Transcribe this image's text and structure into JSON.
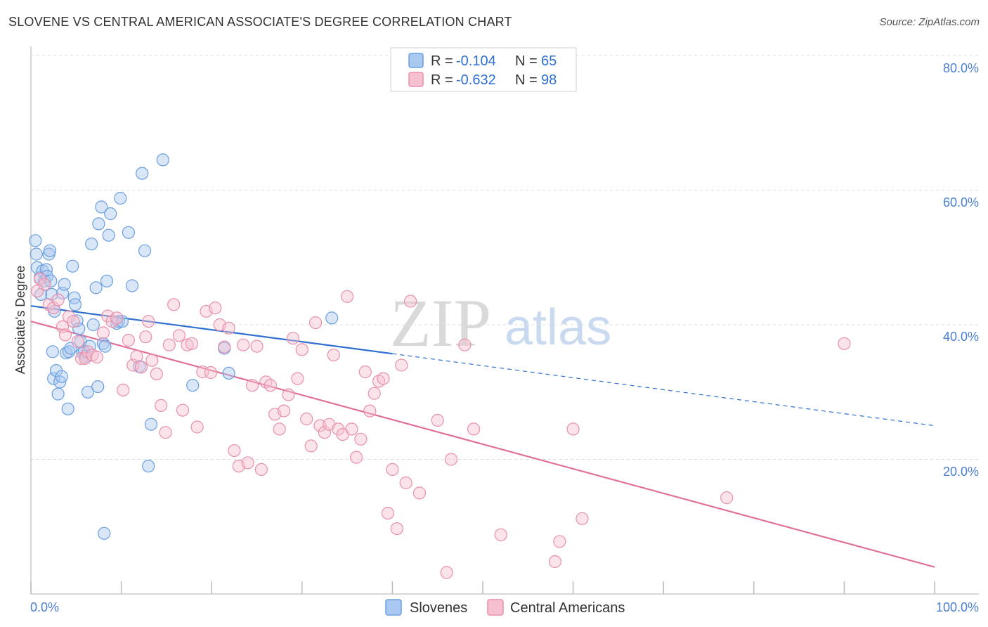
{
  "title": "SLOVENE VS CENTRAL AMERICAN ASSOCIATE'S DEGREE CORRELATION CHART",
  "source": "Source: ZipAtlas.com",
  "watermark": {
    "zip": "ZIP",
    "atlas": "atlas"
  },
  "colors": {
    "blue_fill": "#a8c8f0",
    "blue_stroke": "#6a9fe0",
    "blue_line": "#2f6fd0",
    "pink_fill": "#f7c0d0",
    "pink_stroke": "#e890ab",
    "pink_line": "#e0709a",
    "grid": "#dddddd",
    "tick_text": "#4a7fd0"
  },
  "legend_top": {
    "rows": [
      {
        "r_label": "R =",
        "r_value": "-0.104",
        "n_label": "N =",
        "n_value": "65"
      },
      {
        "r_label": "R =",
        "r_value": "-0.632",
        "n_label": "N =",
        "n_value": "98"
      }
    ]
  },
  "legend_bottom": [
    "Slovenes",
    "Central Americans"
  ],
  "chart_data": {
    "type": "scatter",
    "title": "SLOVENE VS CENTRAL AMERICAN ASSOCIATE'S DEGREE CORRELATION CHART",
    "xlabel": "",
    "ylabel": "Associate's Degree",
    "xlim": [
      0,
      100
    ],
    "ylim": [
      0,
      80
    ],
    "x_tick_labels": [
      "0.0%",
      "100.0%"
    ],
    "y_ticks": [
      20,
      40,
      60,
      80
    ],
    "y_tick_labels": [
      "20.0%",
      "40.0%",
      "60.0%",
      "80.0%"
    ],
    "grid": true,
    "series": [
      {
        "name": "Slovenes",
        "r": -0.104,
        "n": 65,
        "trend": {
          "x0": 0,
          "y0": 42.8,
          "x1": 40,
          "y1": 35.7,
          "dashed_to_x": 100,
          "dashed_to_y": 25.0
        },
        "points": [
          [
            0.5,
            52.5
          ],
          [
            0.6,
            50.5
          ],
          [
            0.7,
            48.5
          ],
          [
            1.0,
            47.0
          ],
          [
            1.1,
            44.5
          ],
          [
            1.3,
            48.0
          ],
          [
            1.5,
            46.5
          ],
          [
            1.7,
            48.2
          ],
          [
            1.8,
            47.2
          ],
          [
            2.0,
            50.5
          ],
          [
            2.1,
            51.0
          ],
          [
            2.2,
            46.5
          ],
          [
            2.3,
            44.5
          ],
          [
            2.4,
            36.0
          ],
          [
            2.5,
            32.0
          ],
          [
            2.6,
            42.0
          ],
          [
            2.8,
            33.2
          ],
          [
            3.0,
            29.7
          ],
          [
            3.2,
            31.5
          ],
          [
            3.4,
            32.3
          ],
          [
            3.5,
            44.7
          ],
          [
            3.7,
            46.0
          ],
          [
            3.9,
            35.8
          ],
          [
            4.1,
            27.5
          ],
          [
            4.2,
            36.0
          ],
          [
            4.4,
            36.5
          ],
          [
            4.6,
            48.7
          ],
          [
            4.8,
            44.0
          ],
          [
            4.9,
            43.0
          ],
          [
            5.1,
            40.6
          ],
          [
            5.3,
            39.4
          ],
          [
            5.5,
            37.5
          ],
          [
            5.7,
            35.8
          ],
          [
            5.9,
            36.0
          ],
          [
            6.1,
            35.3
          ],
          [
            6.3,
            30.0
          ],
          [
            6.5,
            36.8
          ],
          [
            6.7,
            52.0
          ],
          [
            6.9,
            40.0
          ],
          [
            7.2,
            45.5
          ],
          [
            7.4,
            30.8
          ],
          [
            7.5,
            55.0
          ],
          [
            7.8,
            57.5
          ],
          [
            8.0,
            37.2
          ],
          [
            8.2,
            36.8
          ],
          [
            8.4,
            46.5
          ],
          [
            8.6,
            53.3
          ],
          [
            8.8,
            56.5
          ],
          [
            9.5,
            40.2
          ],
          [
            9.7,
            40.5
          ],
          [
            9.9,
            58.8
          ],
          [
            10.1,
            40.5
          ],
          [
            10.8,
            53.7
          ],
          [
            11.2,
            45.8
          ],
          [
            12.3,
            62.5
          ],
          [
            12.6,
            51.0
          ],
          [
            12.0,
            33.8
          ],
          [
            13.0,
            19.0
          ],
          [
            13.3,
            25.2
          ],
          [
            14.6,
            64.5
          ],
          [
            17.9,
            31.0
          ],
          [
            21.4,
            36.5
          ],
          [
            21.9,
            32.8
          ],
          [
            33.3,
            41.0
          ],
          [
            8.1,
            9.0
          ]
        ]
      },
      {
        "name": "Central Americans",
        "r": -0.632,
        "n": 98,
        "trend": {
          "x0": 0,
          "y0": 40.5,
          "x1": 100,
          "y1": 4.0
        },
        "points": [
          [
            0.7,
            45.0
          ],
          [
            1.0,
            46.8
          ],
          [
            1.5,
            46.0
          ],
          [
            2.0,
            43.0
          ],
          [
            2.5,
            42.5
          ],
          [
            3.0,
            43.7
          ],
          [
            3.5,
            39.7
          ],
          [
            3.8,
            38.5
          ],
          [
            4.2,
            41.2
          ],
          [
            4.7,
            40.5
          ],
          [
            5.2,
            37.5
          ],
          [
            5.6,
            35.0
          ],
          [
            6.0,
            35.0
          ],
          [
            6.3,
            36.0
          ],
          [
            6.8,
            35.5
          ],
          [
            7.3,
            35.2
          ],
          [
            8.0,
            38.8
          ],
          [
            8.5,
            41.3
          ],
          [
            9.0,
            40.5
          ],
          [
            9.5,
            41.0
          ],
          [
            10.2,
            30.3
          ],
          [
            10.8,
            37.7
          ],
          [
            11.3,
            34.0
          ],
          [
            11.7,
            35.3
          ],
          [
            12.2,
            33.7
          ],
          [
            12.7,
            38.2
          ],
          [
            13.0,
            40.5
          ],
          [
            13.4,
            34.7
          ],
          [
            13.9,
            32.7
          ],
          [
            14.4,
            28.0
          ],
          [
            14.9,
            24.0
          ],
          [
            15.3,
            37.0
          ],
          [
            15.8,
            43.0
          ],
          [
            16.4,
            38.4
          ],
          [
            16.8,
            27.3
          ],
          [
            17.3,
            37.0
          ],
          [
            17.8,
            37.2
          ],
          [
            18.4,
            24.8
          ],
          [
            19.0,
            33.0
          ],
          [
            19.4,
            42.0
          ],
          [
            19.9,
            32.9
          ],
          [
            20.4,
            42.5
          ],
          [
            20.9,
            40.0
          ],
          [
            21.4,
            36.7
          ],
          [
            21.9,
            39.5
          ],
          [
            22.5,
            21.3
          ],
          [
            23.0,
            19.0
          ],
          [
            23.5,
            37.0
          ],
          [
            24.0,
            19.5
          ],
          [
            24.5,
            31.0
          ],
          [
            25.0,
            36.8
          ],
          [
            25.5,
            18.5
          ],
          [
            26.0,
            31.5
          ],
          [
            26.5,
            31.0
          ],
          [
            27.0,
            26.7
          ],
          [
            27.5,
            24.5
          ],
          [
            28.0,
            27.2
          ],
          [
            28.5,
            29.6
          ],
          [
            29.0,
            38.0
          ],
          [
            29.5,
            32.0
          ],
          [
            30.0,
            36.3
          ],
          [
            30.5,
            26.0
          ],
          [
            31.0,
            22.0
          ],
          [
            31.5,
            40.3
          ],
          [
            32.0,
            25.0
          ],
          [
            32.5,
            24.0
          ],
          [
            33.0,
            25.2
          ],
          [
            33.5,
            35.5
          ],
          [
            34.0,
            24.5
          ],
          [
            34.5,
            23.7
          ],
          [
            35.0,
            44.2
          ],
          [
            35.5,
            24.5
          ],
          [
            36.0,
            20.3
          ],
          [
            36.5,
            23.0
          ],
          [
            37.0,
            33.0
          ],
          [
            37.5,
            27.2
          ],
          [
            38.0,
            29.8
          ],
          [
            38.5,
            31.6
          ],
          [
            39.0,
            32.0
          ],
          [
            39.5,
            12.0
          ],
          [
            40.0,
            18.5
          ],
          [
            40.5,
            9.7
          ],
          [
            41.0,
            34.0
          ],
          [
            41.5,
            16.5
          ],
          [
            42.0,
            43.5
          ],
          [
            43.0,
            15.0
          ],
          [
            45.0,
            25.8
          ],
          [
            46.0,
            3.2
          ],
          [
            46.5,
            20.0
          ],
          [
            48.0,
            37.0
          ],
          [
            49.0,
            24.5
          ],
          [
            52.0,
            8.8
          ],
          [
            58.0,
            4.8
          ],
          [
            58.5,
            7.8
          ],
          [
            60.0,
            24.5
          ],
          [
            61.0,
            11.2
          ],
          [
            77.0,
            14.3
          ],
          [
            90.0,
            37.2
          ]
        ]
      }
    ]
  }
}
